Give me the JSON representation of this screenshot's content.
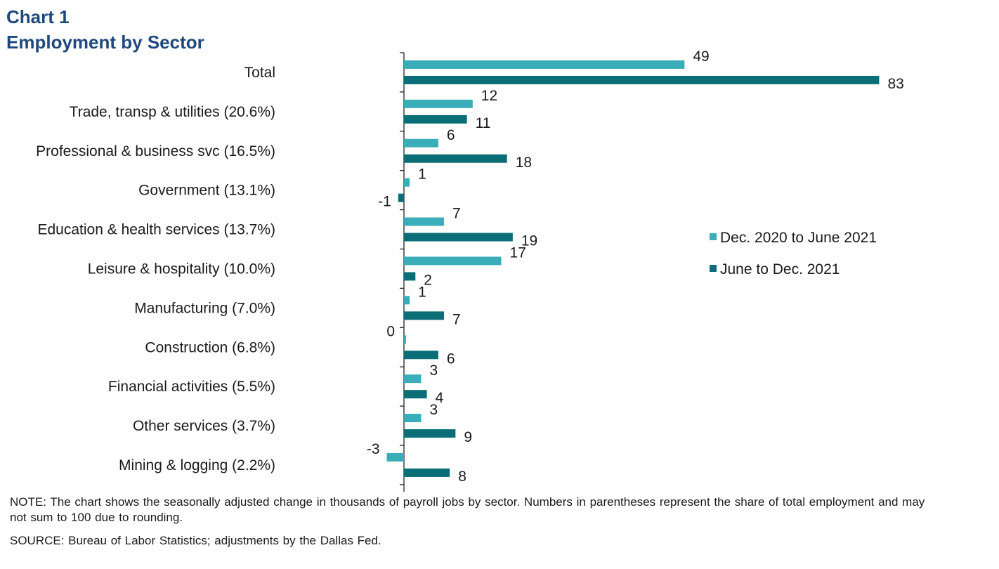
{
  "header": {
    "chart_number": "Chart 1",
    "title": "Employment by Sector"
  },
  "chart_data": {
    "type": "bar",
    "orientation": "horizontal",
    "categories": [
      "Total",
      "Trade, transp & utilities (20.6%)",
      "Professional & business svc (16.5%)",
      "Government (13.1%)",
      "Education & health services (13.7%)",
      "Leisure & hospitality (10.0%)",
      "Manufacturing (7.0%)",
      "Construction (6.8%)",
      "Financial activities (5.5%)",
      "Other services (3.7%)",
      "Mining & logging (2.2%)"
    ],
    "series": [
      {
        "name": "Dec. 2020 to June 2021",
        "color": "#3aaeb8",
        "values": [
          49,
          12,
          6,
          1,
          7,
          17,
          1,
          0,
          3,
          3,
          -3
        ],
        "labels": [
          "49",
          "12",
          "6",
          "1",
          "7",
          "17",
          "1",
          "0",
          "3",
          "3",
          "-3"
        ]
      },
      {
        "name": "June to Dec. 2021",
        "color": "#0b6e76",
        "values": [
          83,
          11,
          18,
          -1,
          19,
          2,
          7,
          6,
          4,
          9,
          8
        ],
        "labels": [
          "83",
          "11",
          "18",
          "-1",
          "19",
          "2",
          "7",
          "6",
          "4",
          "9",
          "8"
        ]
      }
    ],
    "xlim": [
      -3,
      83
    ],
    "legend_position": "right",
    "gridlines": false
  },
  "footer": {
    "note": "NOTE: The chart shows the seasonally adjusted change in thousands of payroll jobs by sector. Numbers in parentheses represent the share of total employment and may not sum to 100 due to rounding.",
    "source": "SOURCE: Bureau of Labor Statistics; adjustments by the Dallas Fed."
  }
}
